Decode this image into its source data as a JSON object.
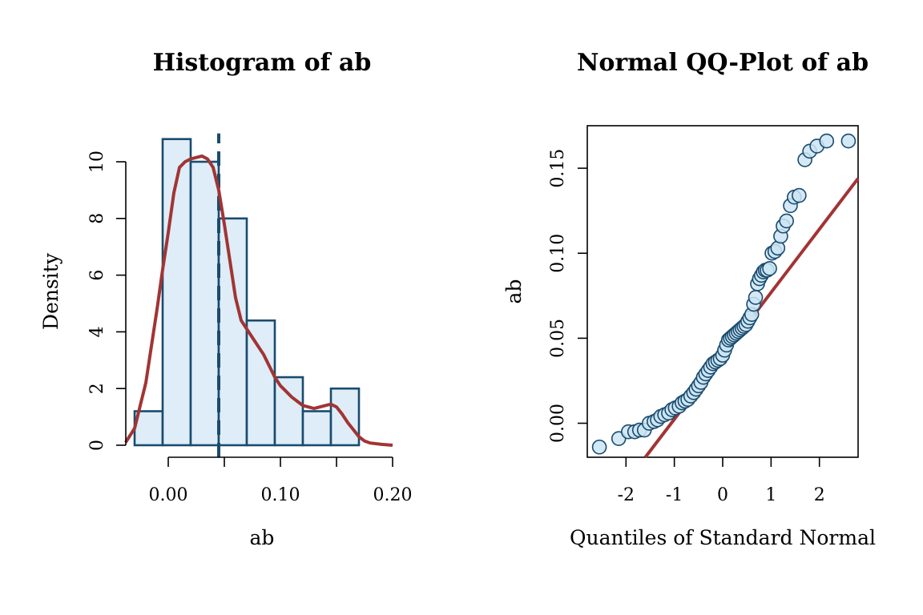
{
  "chart_data": [
    {
      "type": "bar",
      "subtype": "histogram",
      "title": "Histogram of ab",
      "xlabel": "ab",
      "ylabel": "Density",
      "xlim": [
        -0.04,
        0.2
      ],
      "ylim": [
        0,
        11
      ],
      "x_ticks": [
        0.0,
        0.1,
        0.2
      ],
      "x_tick_labels": [
        "0.00",
        "0.10",
        "0.20"
      ],
      "y_ticks": [
        0,
        2,
        4,
        6,
        8,
        10
      ],
      "y_tick_labels": [
        "0",
        "2",
        "4",
        "6",
        "8",
        "10"
      ],
      "bins": [
        {
          "x0": -0.03,
          "x1": -0.005,
          "density": 1.2
        },
        {
          "x0": -0.005,
          "x1": 0.02,
          "density": 10.8
        },
        {
          "x0": 0.02,
          "x1": 0.045,
          "density": 10.0
        },
        {
          "x0": 0.045,
          "x1": 0.07,
          "density": 8.0
        },
        {
          "x0": 0.07,
          "x1": 0.095,
          "density": 4.4
        },
        {
          "x0": 0.095,
          "x1": 0.12,
          "density": 2.4
        },
        {
          "x0": 0.12,
          "x1": 0.145,
          "density": 1.2
        },
        {
          "x0": 0.145,
          "x1": 0.17,
          "density": 2.0
        }
      ],
      "mean": 0.045,
      "density_curve": {
        "x": [
          -0.038,
          -0.03,
          -0.02,
          -0.01,
          -0.005,
          0.0,
          0.005,
          0.01,
          0.015,
          0.02,
          0.025,
          0.03,
          0.035,
          0.04,
          0.045,
          0.05,
          0.055,
          0.06,
          0.065,
          0.07,
          0.075,
          0.08,
          0.085,
          0.09,
          0.095,
          0.1,
          0.105,
          0.11,
          0.115,
          0.12,
          0.13,
          0.14,
          0.145,
          0.15,
          0.155,
          0.16,
          0.165,
          0.17,
          0.175,
          0.18,
          0.19,
          0.2
        ],
        "y": [
          0.1,
          0.6,
          2.2,
          4.8,
          6.2,
          7.5,
          8.9,
          9.8,
          10.0,
          10.1,
          10.15,
          10.2,
          10.1,
          9.8,
          9.0,
          7.8,
          6.5,
          5.2,
          4.4,
          4.1,
          3.8,
          3.5,
          3.2,
          2.8,
          2.4,
          2.1,
          1.9,
          1.7,
          1.55,
          1.4,
          1.3,
          1.4,
          1.45,
          1.35,
          1.1,
          0.8,
          0.55,
          0.3,
          0.15,
          0.08,
          0.03,
          0.0
        ]
      }
    },
    {
      "type": "scatter",
      "subtype": "qq-plot",
      "title": "Normal QQ-Plot of ab",
      "xlabel": "Quantiles of Standard Normal",
      "ylabel": "ab",
      "xlim": [
        -2.8,
        2.8
      ],
      "ylim": [
        -0.02,
        0.175
      ],
      "x_ticks": [
        -2,
        -1,
        0,
        1,
        2
      ],
      "x_tick_labels": [
        "-2",
        "-1",
        "0",
        "1",
        "2"
      ],
      "y_ticks": [
        0.0,
        0.05,
        0.1,
        0.15
      ],
      "y_tick_labels": [
        "0.00",
        "0.05",
        "0.10",
        "0.15"
      ],
      "reference_line": {
        "x": [
          -1.6,
          2.8
        ],
        "y": [
          -0.02,
          0.144
        ]
      },
      "points": [
        [
          -2.55,
          -0.014
        ],
        [
          -2.15,
          -0.009
        ],
        [
          -1.95,
          -0.005
        ],
        [
          -1.82,
          -0.005
        ],
        [
          -1.72,
          -0.004
        ],
        [
          -1.62,
          -0.004
        ],
        [
          -1.52,
          0.0
        ],
        [
          -1.42,
          0.001
        ],
        [
          -1.35,
          0.002
        ],
        [
          -1.28,
          0.004
        ],
        [
          -1.2,
          0.005
        ],
        [
          -1.12,
          0.006
        ],
        [
          -1.05,
          0.008
        ],
        [
          -0.98,
          0.009
        ],
        [
          -0.9,
          0.01
        ],
        [
          -0.84,
          0.012
        ],
        [
          -0.78,
          0.013
        ],
        [
          -0.72,
          0.014
        ],
        [
          -0.66,
          0.016
        ],
        [
          -0.6,
          0.018
        ],
        [
          -0.55,
          0.02
        ],
        [
          -0.5,
          0.022
        ],
        [
          -0.45,
          0.024
        ],
        [
          -0.4,
          0.027
        ],
        [
          -0.35,
          0.029
        ],
        [
          -0.3,
          0.031
        ],
        [
          -0.25,
          0.033
        ],
        [
          -0.2,
          0.035
        ],
        [
          -0.15,
          0.036
        ],
        [
          -0.1,
          0.037
        ],
        [
          -0.05,
          0.038
        ],
        [
          0.0,
          0.04
        ],
        [
          0.04,
          0.043
        ],
        [
          0.08,
          0.046
        ],
        [
          0.12,
          0.049
        ],
        [
          0.16,
          0.05
        ],
        [
          0.2,
          0.051
        ],
        [
          0.24,
          0.052
        ],
        [
          0.28,
          0.053
        ],
        [
          0.32,
          0.054
        ],
        [
          0.36,
          0.055
        ],
        [
          0.4,
          0.056
        ],
        [
          0.44,
          0.057
        ],
        [
          0.48,
          0.058
        ],
        [
          0.52,
          0.06
        ],
        [
          0.56,
          0.062
        ],
        [
          0.6,
          0.064
        ],
        [
          0.64,
          0.07
        ],
        [
          0.68,
          0.074
        ],
        [
          0.72,
          0.082
        ],
        [
          0.76,
          0.085
        ],
        [
          0.8,
          0.087
        ],
        [
          0.84,
          0.089
        ],
        [
          0.88,
          0.09
        ],
        [
          0.92,
          0.09
        ],
        [
          0.97,
          0.091
        ],
        [
          1.02,
          0.1
        ],
        [
          1.08,
          0.101
        ],
        [
          1.14,
          0.103
        ],
        [
          1.2,
          0.11
        ],
        [
          1.25,
          0.116
        ],
        [
          1.32,
          0.119
        ],
        [
          1.4,
          0.128
        ],
        [
          1.48,
          0.133
        ],
        [
          1.58,
          0.134
        ],
        [
          1.7,
          0.155
        ],
        [
          1.8,
          0.16
        ],
        [
          1.95,
          0.163
        ],
        [
          2.15,
          0.166
        ],
        [
          2.6,
          0.166
        ]
      ]
    }
  ]
}
